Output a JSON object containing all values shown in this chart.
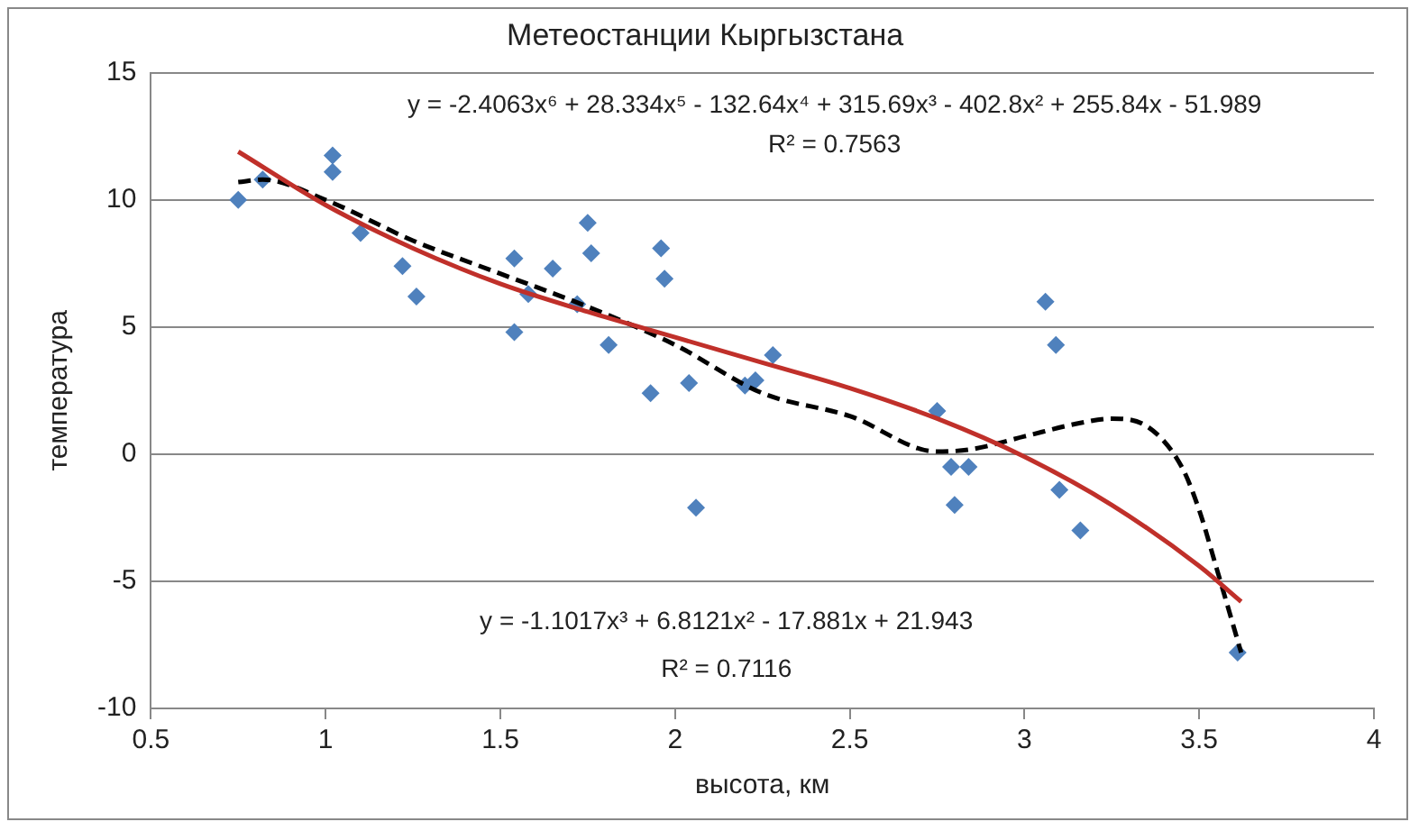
{
  "chart_data": {
    "type": "scatter",
    "title": "Метеостанции Кыргызстана",
    "xlabel": "высота, км",
    "ylabel": "температура",
    "xlim": [
      0.5,
      4
    ],
    "xticks": [
      0.5,
      1,
      1.5,
      2,
      2.5,
      3,
      3.5,
      4
    ],
    "ylim": [
      -10,
      15
    ],
    "yticks": [
      -10,
      -5,
      0,
      5,
      10,
      15
    ],
    "grid": "y",
    "legend": false,
    "annotations": [
      "y = -2.4063x⁶ + 28.334x⁵ - 132.64x⁴ + 315.69x³ - 402.8x² + 255.84x - 51.989",
      "R² = 0.7563",
      "y = -1.1017x³ + 6.8121x² - 17.881x + 21.943",
      "R² = 0.7116"
    ],
    "series": [
      {
        "type": "scatter",
        "color": "#4f81bd",
        "marker": "diamond",
        "x": [
          0.75,
          0.82,
          1.02,
          1.02,
          1.1,
          1.22,
          1.26,
          1.54,
          1.54,
          1.58,
          1.65,
          1.72,
          1.75,
          1.76,
          1.81,
          1.93,
          1.96,
          1.97,
          2.04,
          2.06,
          2.2,
          2.23,
          2.28,
          2.75,
          2.79,
          2.84,
          2.8,
          3.06,
          3.09,
          3.1,
          3.16,
          3.61
        ],
        "values": [
          10,
          10.8,
          11.75,
          11.1,
          8.7,
          7.4,
          6.2,
          4.8,
          7.7,
          6.3,
          7.3,
          5.9,
          9.1,
          7.9,
          4.3,
          2.4,
          8.1,
          6.9,
          2.8,
          -2.1,
          2.7,
          2.9,
          3.9,
          1.7,
          -0.5,
          -0.5,
          -2,
          6,
          4.3,
          -1.4,
          -3,
          -7.8
        ]
      },
      {
        "type": "line",
        "color": "#c0302a",
        "marker": "none",
        "line_style": "solid",
        "x": [
          0.75,
          1,
          1.25,
          1.5,
          1.75,
          2,
          2.25,
          2.5,
          2.75,
          3,
          3.25,
          3.5,
          3.62
        ],
        "values": [
          11.9,
          9.8,
          8.1,
          6.7,
          5.6,
          4.6,
          3.6,
          2.6,
          1.4,
          -0.1,
          -2,
          -4.4,
          -5.8
        ]
      },
      {
        "type": "line",
        "color": "#000000",
        "marker": "none",
        "line_style": "dashed",
        "x": [
          0.75,
          0.82,
          1,
          1.25,
          1.5,
          1.75,
          2,
          2.25,
          2.5,
          2.75,
          2.85,
          3,
          3.15,
          3.25,
          3.35,
          3.45,
          3.5,
          3.55,
          3.62
        ],
        "values": [
          10.7,
          10.8,
          10,
          8.4,
          7.1,
          5.8,
          4.3,
          2.4,
          1.5,
          0.1,
          0.2,
          0.7,
          1.2,
          1.4,
          1.1,
          -0.5,
          -2.2,
          -4.5,
          -7.8
        ]
      }
    ]
  }
}
